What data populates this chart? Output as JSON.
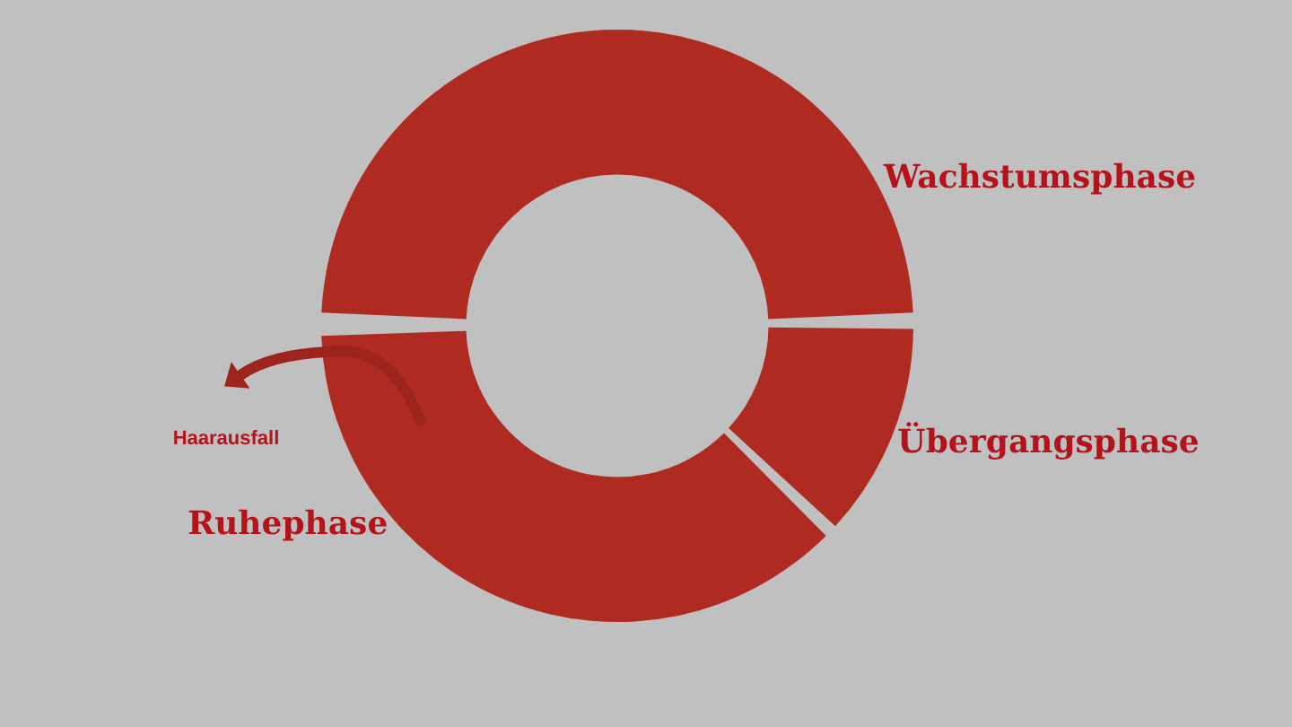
{
  "chart_data": {
    "type": "donut",
    "categories": [
      "Wachstumsphase",
      "Übergangsphase",
      "Ruhephase"
    ],
    "values": [
      50,
      12,
      38
    ],
    "colors": [
      "#af2b22",
      "#af2b22",
      "#af2b22"
    ],
    "legend": false,
    "annotations": [
      "Haarausfall"
    ]
  }
}
